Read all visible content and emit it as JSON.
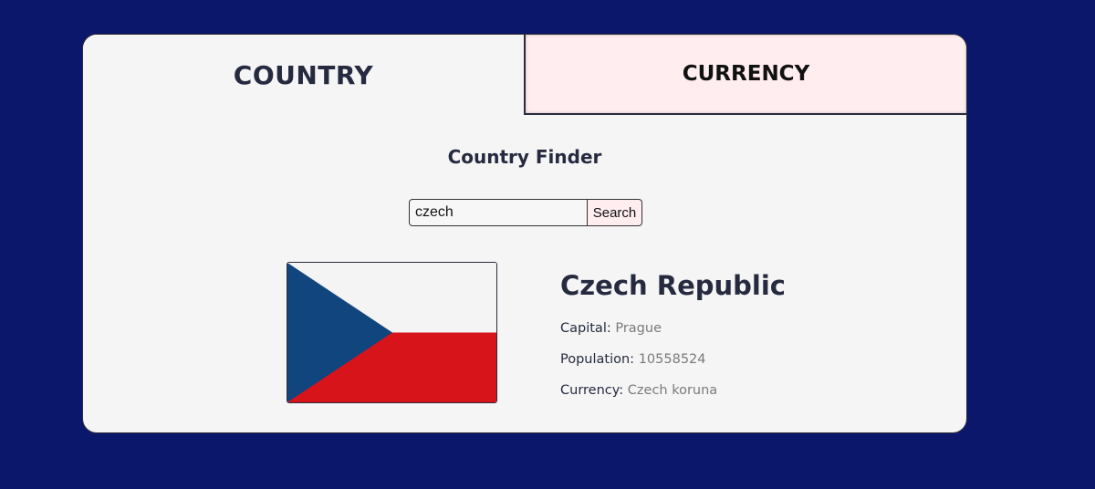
{
  "tabs": {
    "country_label": "COUNTRY",
    "currency_label": "CURRENCY"
  },
  "finder": {
    "title": "Country Finder",
    "search_value": "czech",
    "search_button_label": "Search"
  },
  "result": {
    "name": "Czech Republic",
    "capital_label": "Capital:",
    "capital": "Prague",
    "population_label": "Population:",
    "population": "10558524",
    "currency_label": "Currency:",
    "currency": "Czech koruna",
    "flag": {
      "icon": "czech-flag",
      "colors": {
        "white": "#f4f4f4",
        "red": "#d7141a",
        "blue": "#11457e"
      }
    }
  },
  "colors": {
    "page_background": "#0b176b",
    "card_background": "#f5f5f5",
    "currency_tab_background": "#ffedf0",
    "heading_text": "#262a3f"
  }
}
